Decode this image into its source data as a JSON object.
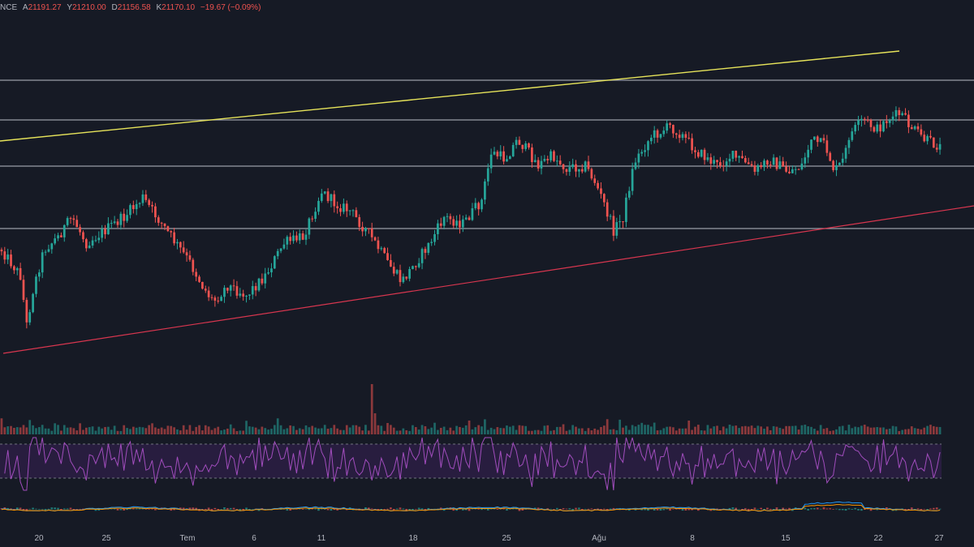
{
  "legend": {
    "prefix": "NCE",
    "open_label": "A",
    "open": "21191.27",
    "high_label": "Y",
    "high": "21210.00",
    "low_label": "D",
    "low": "21156.58",
    "close_label": "K",
    "close": "21170.10",
    "change": "−19.67 (−0.09%)"
  },
  "colors": {
    "background": "#161a25",
    "up": "#26a69a",
    "down": "#ef5350",
    "resistance_trendline": "#e6e35a",
    "support_trendline": "#d8364f",
    "horizontal_levels": "#9a9ea8",
    "rsi": "#a14dbd",
    "rsi_band": "#2c1f44",
    "macd": "#2196f3",
    "signal": "#ff9800"
  },
  "chart_data": {
    "type": "candlestick",
    "x_axis_ticks": [
      "20",
      "25",
      "Tem",
      "6",
      "11",
      "18",
      "25",
      "Ağu",
      "8",
      "15",
      "22",
      "27"
    ],
    "last_candle": {
      "open": 21191.27,
      "high": 21210.0,
      "low": 21156.58,
      "close": 21170.1,
      "change": -19.67,
      "change_pct": -0.09
    },
    "horizontal_levels": [
      "level-1",
      "level-2",
      "level-3",
      "level-4"
    ],
    "trendlines": [
      "rising-resistance",
      "rising-support"
    ],
    "indicators": [
      "volume",
      "rsi",
      "macd"
    ],
    "price_path": [
      [
        0.0,
        0.62
      ],
      [
        0.02,
        0.7
      ],
      [
        0.027,
        0.86
      ],
      [
        0.032,
        0.76
      ],
      [
        0.045,
        0.62
      ],
      [
        0.06,
        0.58
      ],
      [
        0.065,
        0.56
      ],
      [
        0.075,
        0.52
      ],
      [
        0.09,
        0.6
      ],
      [
        0.11,
        0.56
      ],
      [
        0.13,
        0.52
      ],
      [
        0.15,
        0.46
      ],
      [
        0.165,
        0.52
      ],
      [
        0.18,
        0.58
      ],
      [
        0.2,
        0.66
      ],
      [
        0.215,
        0.74
      ],
      [
        0.225,
        0.78
      ],
      [
        0.24,
        0.73
      ],
      [
        0.26,
        0.76
      ],
      [
        0.28,
        0.7
      ],
      [
        0.3,
        0.6
      ],
      [
        0.32,
        0.58
      ],
      [
        0.34,
        0.44
      ],
      [
        0.355,
        0.48
      ],
      [
        0.37,
        0.5
      ],
      [
        0.39,
        0.57
      ],
      [
        0.41,
        0.66
      ],
      [
        0.425,
        0.72
      ],
      [
        0.44,
        0.66
      ],
      [
        0.455,
        0.6
      ],
      [
        0.47,
        0.52
      ],
      [
        0.49,
        0.54
      ],
      [
        0.51,
        0.47
      ],
      [
        0.52,
        0.32
      ],
      [
        0.535,
        0.34
      ],
      [
        0.548,
        0.28
      ],
      [
        0.56,
        0.32
      ],
      [
        0.57,
        0.36
      ],
      [
        0.585,
        0.33
      ],
      [
        0.6,
        0.37
      ],
      [
        0.62,
        0.36
      ],
      [
        0.63,
        0.41
      ],
      [
        0.64,
        0.48
      ],
      [
        0.65,
        0.56
      ],
      [
        0.66,
        0.52
      ],
      [
        0.672,
        0.35
      ],
      [
        0.69,
        0.27
      ],
      [
        0.71,
        0.24
      ],
      [
        0.72,
        0.26
      ],
      [
        0.74,
        0.32
      ],
      [
        0.76,
        0.36
      ],
      [
        0.775,
        0.33
      ],
      [
        0.79,
        0.35
      ],
      [
        0.8,
        0.38
      ],
      [
        0.815,
        0.34
      ],
      [
        0.835,
        0.38
      ],
      [
        0.85,
        0.36
      ],
      [
        0.86,
        0.28
      ],
      [
        0.875,
        0.3
      ],
      [
        0.885,
        0.38
      ],
      [
        0.895,
        0.34
      ],
      [
        0.9,
        0.27
      ],
      [
        0.915,
        0.22
      ],
      [
        0.93,
        0.25
      ],
      [
        0.94,
        0.22
      ],
      [
        0.955,
        0.2
      ],
      [
        0.965,
        0.24
      ],
      [
        0.98,
        0.28
      ],
      [
        0.995,
        0.3
      ],
      [
        1.01,
        0.33
      ],
      [
        1.02,
        0.36
      ],
      [
        1.03,
        0.4
      ],
      [
        1.04,
        0.56
      ],
      [
        1.05,
        0.62
      ],
      [
        1.065,
        0.6
      ],
      [
        1.08,
        0.58
      ],
      [
        1.1,
        0.6
      ],
      [
        1.12,
        0.57
      ],
      [
        1.135,
        0.56
      ],
      [
        1.15,
        0.59
      ],
      [
        1.16,
        0.62
      ]
    ]
  }
}
